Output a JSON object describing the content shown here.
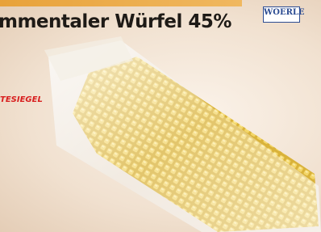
{
  "header": {
    "title": "mmentaler Würfel 45%",
    "brand": "WOERLE"
  },
  "badge": {
    "text": "TESIEGEL"
  }
}
